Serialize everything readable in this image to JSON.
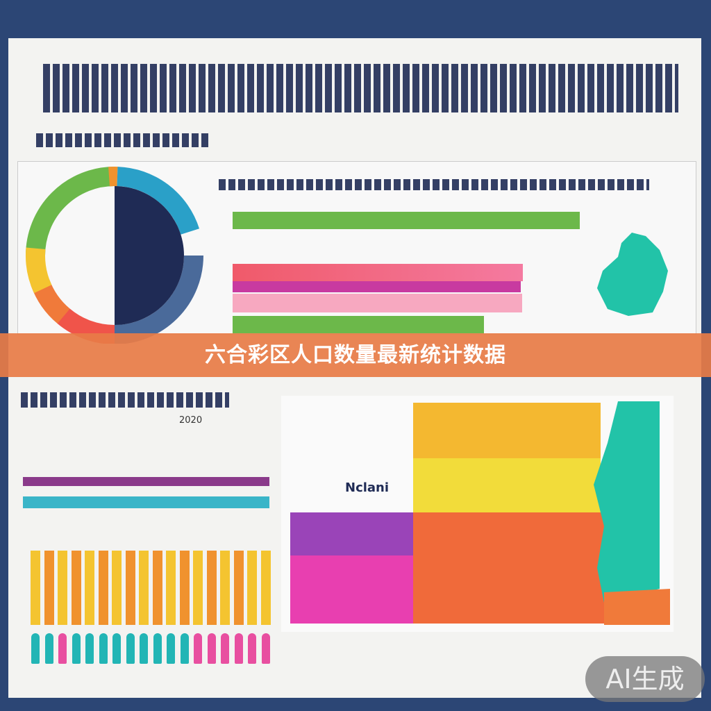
{
  "banner": {
    "title": "六合彩区人口数量最新统计数据"
  },
  "poster": {
    "region_label": "Nclani",
    "year_label": "2020"
  },
  "badge": {
    "label": "AI生成"
  },
  "colors": {
    "background": "#2c4675",
    "banner": "#e87c46",
    "navy": "#1f2b55",
    "green": "#6cb84a",
    "pink": "#f47aa0",
    "magenta": "#e03db0",
    "yellow": "#f4c430",
    "orange": "#f07a3a",
    "teal": "#22c3a8",
    "purple": "#8a44b0"
  },
  "bar_colors": [
    "#f4c430",
    "#f0922e",
    "#f4c430",
    "#f0922e",
    "#f4c430",
    "#f0922e",
    "#f4c430",
    "#f0922e",
    "#f4c430",
    "#f0922e",
    "#f4c430",
    "#f0922e",
    "#f4c430",
    "#f0922e",
    "#f4c430",
    "#f0922e",
    "#f4c430",
    "#f4c430"
  ],
  "pin_colors": [
    "#22b5b5",
    "#22b5b5",
    "#e84fa0",
    "#22b5b5",
    "#22b5b5",
    "#22b5b5",
    "#22b5b5",
    "#22b5b5",
    "#22b5b5",
    "#22b5b5",
    "#22b5b5",
    "#22b5b5",
    "#e84fa0",
    "#e84fa0",
    "#e84fa0",
    "#e84fa0",
    "#e84fa0",
    "#e84fa0"
  ]
}
